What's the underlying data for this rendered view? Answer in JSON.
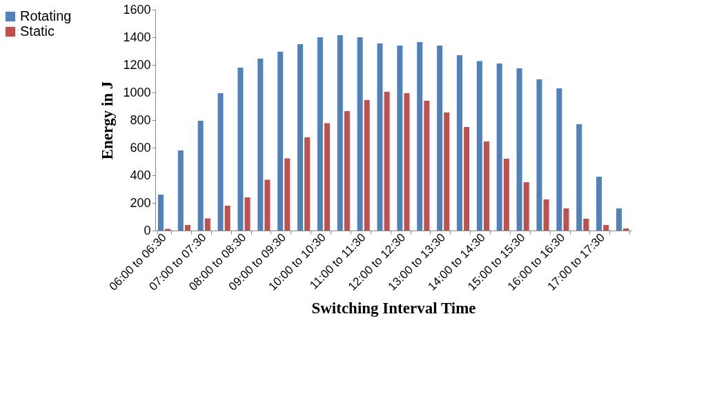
{
  "chart_data": {
    "type": "bar",
    "xlabel": "Switching Interval Time",
    "ylabel": "Energy in J",
    "categories": [
      "06:00 to 06:30",
      null,
      "07:00 to 07:30",
      null,
      "08:00 to 08:30",
      null,
      "09:00 to 09:30",
      null,
      "10:00 to 10:30",
      null,
      "11:00 to 11:30",
      null,
      "12:00 to 12:30",
      null,
      "13:00 to 13:30",
      null,
      "14:00 to 14:30",
      null,
      "15:00 to 15:30",
      null,
      "16:00 to 16:30",
      null,
      "17:00 to 17:30",
      null
    ],
    "series": [
      {
        "name": "Rotating",
        "color": "#4f81bd",
        "values": [
          260,
          580,
          795,
          995,
          1180,
          1245,
          1295,
          1350,
          1400,
          1415,
          1400,
          1355,
          1340,
          1365,
          1340,
          1270,
          1228,
          1210,
          1175,
          1095,
          1030,
          770,
          390,
          160
        ]
      },
      {
        "name": "Static",
        "color": "#c0504d",
        "values": [
          12,
          40,
          88,
          180,
          240,
          368,
          522,
          675,
          778,
          865,
          945,
          1005,
          995,
          940,
          855,
          750,
          645,
          520,
          350,
          225,
          160,
          85,
          40,
          15
        ]
      }
    ],
    "ylim": [
      0,
      1600
    ],
    "yticks": [
      0,
      200,
      400,
      600,
      800,
      1000,
      1200,
      1400,
      1600
    ],
    "grid": false,
    "legend": "left"
  }
}
